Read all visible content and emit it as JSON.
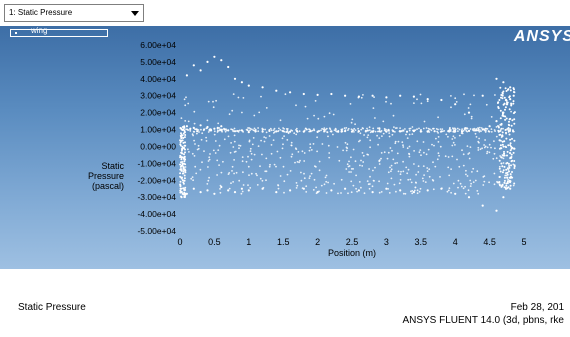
{
  "toolbar": {
    "display_select": "1: Static Pressure"
  },
  "graphics": {
    "legend_label": "wing",
    "logo": "ANSYS",
    "ylabel_lines": [
      "Static",
      "Pressure",
      "(pascal)"
    ]
  },
  "status": {
    "left_label": "Static Pressure",
    "date": "Feb 28, 201",
    "product": "ANSYS FLUENT 14.0 (3d, pbns, rke"
  },
  "colors": {
    "background_top": "#3d6ea6",
    "background_bottom": "#9ec0e2",
    "points": "#ffffff"
  },
  "chart_data": {
    "type": "scatter",
    "title": "",
    "xlabel": "Position (m)",
    "ylabel": "Static Pressure (pascal)",
    "xlim": [
      0,
      5
    ],
    "ylim": [
      -50000,
      60000
    ],
    "x_ticks": [
      "0",
      "0.5",
      "1",
      "1.5",
      "2",
      "2.5",
      "3",
      "3.5",
      "4",
      "4.5",
      "5"
    ],
    "y_ticks": [
      "6.00e+04",
      "5.00e+04",
      "4.00e+04",
      "3.00e+04",
      "2.00e+04",
      "1.00e+04",
      "0.00e+00",
      "-1.00e+04",
      "-2.00e+04",
      "-3.00e+04",
      "-4.00e+04",
      "-5.00e+04"
    ],
    "series": [
      {
        "x": [
          0.05,
          0.1,
          0.15,
          0.2,
          0.25,
          0.3,
          0.35,
          0.4,
          0.45,
          0.5,
          0.55,
          0.6,
          0.65,
          0.7,
          0.8,
          0.9,
          1.0,
          1.1,
          1.2,
          1.3,
          1.4,
          1.5,
          1.6,
          1.7,
          1.8,
          1.9,
          2.0,
          2.1,
          2.2,
          2.3,
          2.4,
          2.5,
          2.6,
          2.7,
          2.8,
          2.9,
          3.0,
          3.1,
          3.2,
          3.3,
          3.4,
          3.5,
          3.6,
          3.7,
          3.8,
          3.9,
          4.0,
          4.1,
          4.2,
          4.3,
          4.4,
          4.5,
          4.6,
          4.7,
          4.75,
          4.8,
          4.85
        ],
        "y": [
          10000,
          12000,
          10500,
          11000,
          9000,
          12500,
          10000,
          11500,
          9500,
          10500,
          11000,
          12000,
          10000,
          9500,
          9000,
          9500,
          8500,
          9000,
          8800,
          9200,
          8900,
          9000,
          8700,
          9100,
          8800,
          9000,
          8600,
          9000,
          8900,
          8700,
          9100,
          8800,
          9000,
          8900,
          8700,
          9000,
          8800,
          9000,
          8900,
          8700,
          9100,
          9000,
          8800,
          9000,
          8900,
          9100,
          9000,
          8800,
          9200,
          9500,
          10000,
          12000,
          15000,
          20000,
          25000,
          28000,
          30000
        ]
      },
      {
        "x": [
          0.1,
          0.2,
          0.3,
          0.4,
          0.5,
          0.6,
          0.7,
          0.8,
          0.9,
          1.0,
          1.2,
          1.4,
          1.6,
          1.8,
          2.0,
          2.2,
          2.4,
          2.6,
          2.8,
          3.0,
          3.2,
          3.4,
          3.6,
          3.8,
          4.0,
          4.2,
          4.4,
          4.6,
          4.7,
          4.8
        ],
        "y": [
          42000,
          48000,
          45000,
          50000,
          53000,
          51000,
          47000,
          40000,
          38000,
          36000,
          35000,
          33000,
          32000,
          31000,
          30500,
          31000,
          30000,
          29500,
          30000,
          29000,
          30000,
          29500,
          28000,
          27500,
          25000,
          20000,
          30000,
          40000,
          38000,
          35000
        ]
      },
      {
        "x": [
          0.1,
          0.2,
          0.3,
          0.4,
          0.5,
          0.6,
          0.7,
          0.8,
          0.9,
          1.0,
          1.2,
          1.4,
          1.6,
          1.8,
          2.0,
          2.2,
          2.4,
          2.6,
          2.8,
          3.0,
          3.2,
          3.4,
          3.6,
          3.8,
          4.0,
          4.2,
          4.4,
          4.6,
          4.7,
          4.8
        ],
        "y": [
          -28000,
          -25000,
          -27000,
          -26000,
          -28000,
          -24000,
          -26000,
          -27000,
          -25000,
          -26000,
          -25000,
          -27000,
          -26000,
          -25000,
          -27000,
          -26000,
          -25000,
          -26000,
          -27000,
          -25000,
          -26000,
          -27000,
          -26000,
          -25000,
          -28000,
          -30000,
          -35000,
          -38000,
          -30000,
          -25000
        ]
      }
    ],
    "grid": false,
    "legend": "top-left"
  }
}
